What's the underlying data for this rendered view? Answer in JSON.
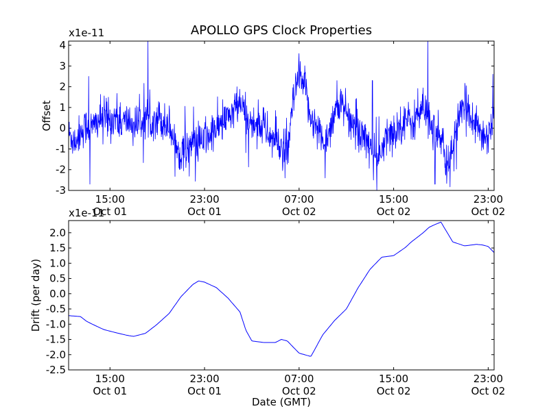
{
  "chart_data": {
    "title": "APOLLO GPS Clock Properties",
    "xlabel": "Date (GMT)",
    "x_ticks": [
      {
        "time": "15:00",
        "date": "Oct 01",
        "hours": 15
      },
      {
        "time": "23:00",
        "date": "Oct 01",
        "hours": 23
      },
      {
        "time": "07:00",
        "date": "Oct 02",
        "hours": 31
      },
      {
        "time": "15:00",
        "date": "Oct 02",
        "hours": 39
      },
      {
        "time": "23:00",
        "date": "Oct 02",
        "hours": 47
      }
    ],
    "xlim_hours": [
      11.5,
      47.5
    ],
    "charts": [
      {
        "type": "line",
        "name": "offset",
        "ylabel": "Offset",
        "scale_label": "x1e-11",
        "ylim": [
          -3,
          4.2
        ],
        "yticks": [
          -3,
          -2,
          -1,
          0,
          1,
          2,
          3,
          4
        ],
        "ytick_labels": [
          "-3",
          "-2",
          "-1",
          "0",
          "1",
          "2",
          "3",
          "4"
        ],
        "color": "#0000ff",
        "hours": [
          11.5,
          12.0,
          12.5,
          13.0,
          13.5,
          14.0,
          14.5,
          15.0,
          15.5,
          16.0,
          16.5,
          17.0,
          17.5,
          18.0,
          18.5,
          19.0,
          19.5,
          20.0,
          20.5,
          21.0,
          21.5,
          22.0,
          22.5,
          23.0,
          23.5,
          24.0,
          24.5,
          25.0,
          25.5,
          26.0,
          26.5,
          27.0,
          27.5,
          28.0,
          28.5,
          29.0,
          29.5,
          30.0,
          30.5,
          31.0,
          31.5,
          32.0,
          32.5,
          33.0,
          33.5,
          34.0,
          34.5,
          35.0,
          35.5,
          36.0,
          36.5,
          37.0,
          37.5,
          38.0,
          38.5,
          39.0,
          39.5,
          40.0,
          40.5,
          41.0,
          41.5,
          42.0,
          42.5,
          43.0,
          43.5,
          44.0,
          44.5,
          45.0,
          45.5,
          46.0,
          46.5,
          47.0,
          47.5
        ],
        "values": [
          -0.3,
          -0.6,
          -0.2,
          0.1,
          0.0,
          0.4,
          0.5,
          0.3,
          0.6,
          0.2,
          0.4,
          0.1,
          0.3,
          0.5,
          0.4,
          0.6,
          0.3,
          0.2,
          -0.8,
          -1.2,
          -0.9,
          -0.7,
          -0.8,
          -0.5,
          -0.4,
          0.0,
          0.2,
          0.5,
          0.9,
          1.2,
          0.6,
          0.1,
          0.3,
          0.0,
          -0.4,
          -0.6,
          -0.9,
          -1.4,
          1.3,
          2.4,
          1.9,
          0.6,
          0.0,
          -0.6,
          -0.3,
          0.9,
          1.1,
          0.6,
          0.2,
          0.0,
          -0.4,
          -0.7,
          -1.5,
          -1.2,
          -0.3,
          -0.2,
          0.1,
          0.5,
          0.2,
          0.6,
          0.9,
          0.5,
          -0.2,
          -0.6,
          -1.9,
          -0.8,
          0.4,
          1.0,
          0.8,
          0.3,
          -0.4,
          -0.3,
          0.6
        ],
        "noise": 0.45,
        "spikes": [
          {
            "hours": 13.2,
            "value": 2.5
          },
          {
            "hours": 13.3,
            "value": -2.7
          },
          {
            "hours": 29.8,
            "value": -2.4
          },
          {
            "hours": 31.0,
            "value": 3.6
          },
          {
            "hours": 33.2,
            "value": -2.4
          },
          {
            "hours": 37.2,
            "value": 2.3
          },
          {
            "hours": 37.3,
            "value": -2.5
          },
          {
            "hours": 41.9,
            "value": 4.2
          },
          {
            "hours": 42.5,
            "value": -2.7
          },
          {
            "hours": 47.4,
            "value": 2.6
          }
        ]
      },
      {
        "type": "line",
        "name": "drift",
        "ylabel": "Drift (per day)",
        "scale_label": "x1e-11",
        "ylim": [
          -2.5,
          2.4
        ],
        "yticks": [
          -2.5,
          -2.0,
          -1.5,
          -1.0,
          -0.5,
          0.0,
          0.5,
          1.0,
          1.5,
          2.0
        ],
        "ytick_labels": [
          "-2.5",
          "-2.0",
          "-1.5",
          "-1.0",
          "-0.5",
          "0.0",
          "0.5",
          "1.0",
          "1.5",
          "2.0"
        ],
        "color": "#0000ff",
        "hours": [
          11.5,
          12.5,
          13.0,
          13.5,
          14.5,
          15.5,
          16.5,
          17.0,
          18.0,
          19.0,
          20.0,
          21.0,
          22.0,
          22.5,
          23.0,
          24.0,
          25.0,
          26.0,
          26.5,
          27.0,
          28.0,
          28.5,
          29.0,
          29.5,
          30.0,
          30.5,
          31.0,
          32.0,
          33.0,
          34.0,
          35.0,
          36.0,
          37.0,
          38.0,
          39.0,
          40.0,
          40.5,
          41.0,
          41.5,
          42.0,
          42.5,
          43.0,
          44.0,
          45.0,
          46.0,
          46.5,
          47.0,
          47.5
        ],
        "values": [
          -0.72,
          -0.75,
          -0.9,
          -1.0,
          -1.18,
          -1.28,
          -1.37,
          -1.4,
          -1.3,
          -1.0,
          -0.65,
          -0.1,
          0.3,
          0.42,
          0.38,
          0.2,
          -0.15,
          -0.6,
          -1.2,
          -1.55,
          -1.6,
          -1.6,
          -1.6,
          -1.5,
          -1.55,
          -1.75,
          -1.95,
          -2.06,
          -1.35,
          -0.88,
          -0.5,
          0.2,
          0.8,
          1.2,
          1.25,
          1.52,
          1.7,
          1.85,
          2.0,
          2.18,
          2.27,
          2.35,
          1.7,
          1.57,
          1.62,
          1.6,
          1.55,
          1.35
        ]
      }
    ]
  }
}
